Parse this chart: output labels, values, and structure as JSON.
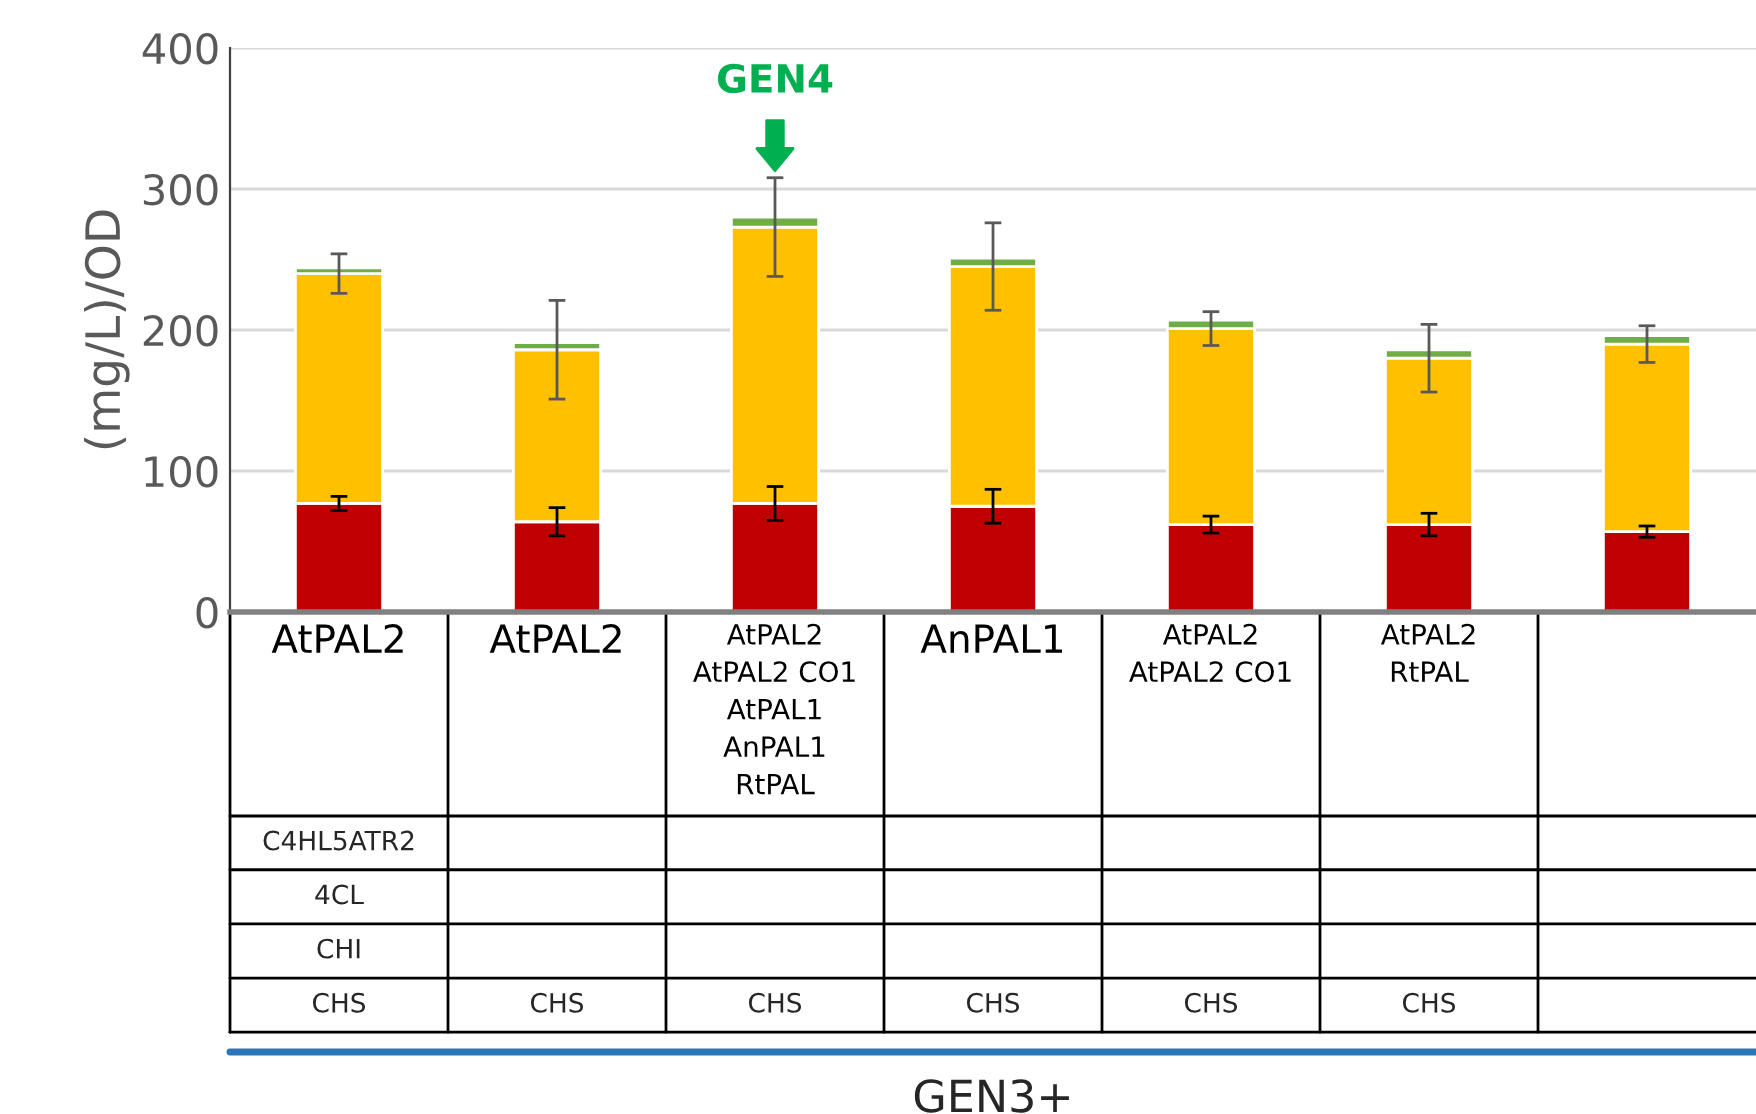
{
  "chart_data": {
    "type": "bar",
    "stacked": true,
    "ylabel": "(mg/L)/OD",
    "categories": [
      "AtPAL2",
      "AtPAL2",
      "AtPAL2\nAtPAL2 CO1\nAtPAL1\nAnPAL1\nRtPAL",
      "AnPAL1",
      "AtPAL2\nAtPAL2 CO1",
      "AtPAL2\nRtPAL",
      null
    ],
    "series": [
      {
        "color": "#c00000",
        "values": [
          77,
          64,
          77,
          75,
          62,
          62,
          57
        ],
        "errors": [
          5,
          10,
          12,
          12,
          6,
          8,
          4
        ]
      },
      {
        "color": "#ffc000",
        "values": [
          163,
          122,
          196,
          170,
          139,
          118,
          133
        ],
        "errors": [
          14,
          35,
          35,
          31,
          12,
          24,
          13
        ]
      },
      {
        "color": "#70ad47",
        "values": [
          4,
          5,
          7,
          6,
          6,
          6,
          6
        ]
      }
    ],
    "ylim": [
      0,
      400
    ],
    "yticks": [
      0,
      100,
      200,
      300,
      400
    ],
    "grid": "y",
    "legend": false,
    "annotations": [
      "GEN4",
      "C4HL5ATR2",
      "4CL",
      "CHI",
      "CHS",
      "CHS",
      "CHS",
      "CHS",
      "CHS",
      "CHS",
      "GEN3+"
    ]
  }
}
